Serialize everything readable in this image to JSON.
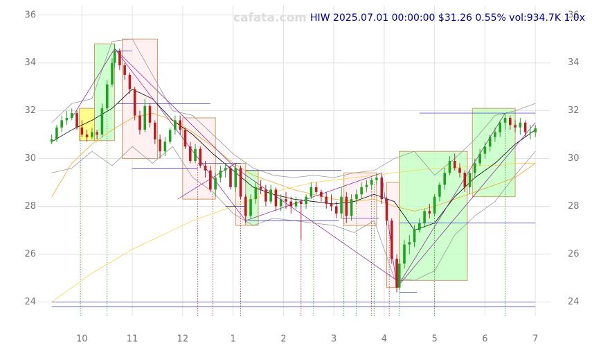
{
  "chart_data": {
    "type": "candlestick",
    "title": "HIW 2025.07.01 00:00:00 $31.26 0.55% vol:934.7K 1.0x",
    "watermark": "cafata.com",
    "xlim": [
      9.13,
      19.3
    ],
    "ylim": [
      23.4,
      36.4
    ],
    "xticks": [
      10,
      11,
      12,
      {
        "value": 13,
        "label": "1"
      },
      {
        "value": 14,
        "label": "2"
      },
      {
        "value": 15,
        "label": "3"
      },
      {
        "value": 16,
        "label": "4"
      },
      {
        "value": 17,
        "label": "5"
      },
      {
        "value": 18,
        "label": "6"
      },
      {
        "value": 19,
        "label": "7"
      }
    ],
    "yticks": [
      24,
      26,
      28,
      30,
      32,
      34,
      36
    ],
    "grid": true,
    "up_color": "#22a022",
    "down_color": "#b52025",
    "candles": [
      [
        9.4,
        30.7,
        31.0,
        30.6,
        30.8
      ],
      [
        9.5,
        30.8,
        31.4,
        30.7,
        31.3
      ],
      [
        9.6,
        31.3,
        31.8,
        31.1,
        31.6
      ],
      [
        9.7,
        31.6,
        32.0,
        31.4,
        31.7
      ],
      [
        9.8,
        31.7,
        32.1,
        31.6,
        31.9
      ],
      [
        9.9,
        31.9,
        32.0,
        31.2,
        31.3
      ],
      [
        10.0,
        31.3,
        31.6,
        30.9,
        31.0
      ],
      [
        10.1,
        31.0,
        31.2,
        30.7,
        30.9
      ],
      [
        10.2,
        30.9,
        31.3,
        30.8,
        31.1
      ],
      [
        10.3,
        31.1,
        31.2,
        30.8,
        31.0
      ],
      [
        10.4,
        31.0,
        32.3,
        30.9,
        32.1
      ],
      [
        10.5,
        32.1,
        33.3,
        32.0,
        33.1
      ],
      [
        10.6,
        33.1,
        34.2,
        33.0,
        34.0
      ],
      [
        10.65,
        34.0,
        34.8,
        33.8,
        34.5
      ],
      [
        10.75,
        34.5,
        34.6,
        33.7,
        33.9
      ],
      [
        10.85,
        33.9,
        34.0,
        33.3,
        33.5
      ],
      [
        10.95,
        33.5,
        33.6,
        32.7,
        32.9
      ],
      [
        11.05,
        32.9,
        33.0,
        31.6,
        31.8
      ],
      [
        11.15,
        31.8,
        32.0,
        31.0,
        31.2
      ],
      [
        11.25,
        31.2,
        32.5,
        31.1,
        32.2
      ],
      [
        11.35,
        32.2,
        32.3,
        31.3,
        31.5
      ],
      [
        11.45,
        31.5,
        31.6,
        30.6,
        30.8
      ],
      [
        11.55,
        30.8,
        31.0,
        30.0,
        30.3
      ],
      [
        11.65,
        30.3,
        30.9,
        30.1,
        30.7
      ],
      [
        11.75,
        30.7,
        31.3,
        30.6,
        31.2
      ],
      [
        11.85,
        31.2,
        31.8,
        31.0,
        31.6
      ],
      [
        11.95,
        31.6,
        31.8,
        31.0,
        31.2
      ],
      [
        12.05,
        31.2,
        31.3,
        30.4,
        30.5
      ],
      [
        12.15,
        30.5,
        30.7,
        29.8,
        29.9
      ],
      [
        12.25,
        29.9,
        30.6,
        29.8,
        30.4
      ],
      [
        12.35,
        30.4,
        30.5,
        29.6,
        29.7
      ],
      [
        12.45,
        29.7,
        29.9,
        29.2,
        29.5
      ],
      [
        12.55,
        29.5,
        29.7,
        28.6,
        28.7
      ],
      [
        12.65,
        28.7,
        29.4,
        28.4,
        29.2
      ],
      [
        12.75,
        29.2,
        29.7,
        29.0,
        29.5
      ],
      [
        12.85,
        29.5,
        29.8,
        29.2,
        29.6
      ],
      [
        12.95,
        29.6,
        29.7,
        28.7,
        28.8
      ],
      [
        13.05,
        28.8,
        29.8,
        28.6,
        29.6
      ],
      [
        13.15,
        29.6,
        29.7,
        28.3,
        28.4
      ],
      [
        13.25,
        28.4,
        28.5,
        27.3,
        27.6
      ],
      [
        13.35,
        27.6,
        28.5,
        27.5,
        28.3
      ],
      [
        13.45,
        28.3,
        29.0,
        28.1,
        28.8
      ],
      [
        13.55,
        28.8,
        29.1,
        28.5,
        28.7
      ],
      [
        13.65,
        28.7,
        28.9,
        28.0,
        28.2
      ],
      [
        13.75,
        28.2,
        28.9,
        28.1,
        28.7
      ],
      [
        13.85,
        28.7,
        28.8,
        27.8,
        28.0
      ],
      [
        13.95,
        28.0,
        28.5,
        27.8,
        28.3
      ],
      [
        14.05,
        28.3,
        28.6,
        27.9,
        28.2
      ],
      [
        14.15,
        28.2,
        28.4,
        27.7,
        28.0
      ],
      [
        14.25,
        28.0,
        28.4,
        27.9,
        28.2
      ],
      [
        14.35,
        28.2,
        28.3,
        26.6,
        28.1
      ],
      [
        14.45,
        28.1,
        28.5,
        27.9,
        28.4
      ],
      [
        14.55,
        28.4,
        29.0,
        28.3,
        28.8
      ],
      [
        14.65,
        28.8,
        29.0,
        28.5,
        28.6
      ],
      [
        14.75,
        28.6,
        28.7,
        28.2,
        28.4
      ],
      [
        14.85,
        28.4,
        28.6,
        27.9,
        28.1
      ],
      [
        14.95,
        28.1,
        28.5,
        27.8,
        28.0
      ],
      [
        15.05,
        28.0,
        28.2,
        27.5,
        27.7
      ],
      [
        15.15,
        27.7,
        28.8,
        27.5,
        28.4
      ],
      [
        15.25,
        28.4,
        28.6,
        27.3,
        27.6
      ],
      [
        15.35,
        27.6,
        28.5,
        27.4,
        28.3
      ],
      [
        15.45,
        28.3,
        28.7,
        28.1,
        28.5
      ],
      [
        15.55,
        28.5,
        29.0,
        28.3,
        28.8
      ],
      [
        15.65,
        28.8,
        29.1,
        28.6,
        28.9
      ],
      [
        15.75,
        28.9,
        29.2,
        28.7,
        29.1
      ],
      [
        15.85,
        29.1,
        29.4,
        28.9,
        29.2
      ],
      [
        15.95,
        29.2,
        29.3,
        28.1,
        28.3
      ],
      [
        16.05,
        28.3,
        28.4,
        27.2,
        27.4
      ],
      [
        16.15,
        27.4,
        27.5,
        25.6,
        25.8
      ],
      [
        16.25,
        25.8,
        26.0,
        24.4,
        24.6
      ],
      [
        16.3,
        24.6,
        25.8,
        24.5,
        25.6
      ],
      [
        16.4,
        25.6,
        26.6,
        25.4,
        26.4
      ],
      [
        16.5,
        26.4,
        26.8,
        26.0,
        26.5
      ],
      [
        16.6,
        26.5,
        27.2,
        26.3,
        27.0
      ],
      [
        16.7,
        27.0,
        27.5,
        26.9,
        27.3
      ],
      [
        16.8,
        27.3,
        27.9,
        27.1,
        27.8
      ],
      [
        16.9,
        27.8,
        28.1,
        27.5,
        27.7
      ],
      [
        17.0,
        27.7,
        28.5,
        27.6,
        28.4
      ],
      [
        17.1,
        28.4,
        29.0,
        28.2,
        28.9
      ],
      [
        17.2,
        28.9,
        29.6,
        28.7,
        29.4
      ],
      [
        17.3,
        29.4,
        30.1,
        29.3,
        29.9
      ],
      [
        17.4,
        29.9,
        30.2,
        29.5,
        29.6
      ],
      [
        17.5,
        29.6,
        29.8,
        29.2,
        29.4
      ],
      [
        17.6,
        29.4,
        29.5,
        28.6,
        28.8
      ],
      [
        17.7,
        28.8,
        29.5,
        28.5,
        29.4
      ],
      [
        17.8,
        29.4,
        30.0,
        29.2,
        29.8
      ],
      [
        17.9,
        29.8,
        30.4,
        29.7,
        30.2
      ],
      [
        18.0,
        30.2,
        30.7,
        30.0,
        30.5
      ],
      [
        18.1,
        30.5,
        31.0,
        30.3,
        30.9
      ],
      [
        18.2,
        30.9,
        31.3,
        30.7,
        31.1
      ],
      [
        18.3,
        31.1,
        31.6,
        30.9,
        31.5
      ],
      [
        18.4,
        31.5,
        31.9,
        31.2,
        31.7
      ],
      [
        18.5,
        31.7,
        31.8,
        31.2,
        31.4
      ],
      [
        18.6,
        31.4,
        31.6,
        31.1,
        31.3
      ],
      [
        18.7,
        31.3,
        31.7,
        31.0,
        31.5
      ],
      [
        18.8,
        31.5,
        31.6,
        30.9,
        31.1
      ],
      [
        18.9,
        31.1,
        31.4,
        30.8,
        31.1
      ],
      [
        19.0,
        31.1,
        31.4,
        30.9,
        31.26
      ]
    ],
    "line_x": [
      9.4,
      9.8,
      10.2,
      10.6,
      11.0,
      11.4,
      11.8,
      12.2,
      12.6,
      13.0,
      13.4,
      13.8,
      14.2,
      14.6,
      15.0,
      15.4,
      15.8,
      16.2,
      16.6,
      17.0,
      17.4,
      17.8,
      18.2,
      18.6,
      19.0
    ],
    "lines": [
      {
        "color": "#ffd24a",
        "values": [
          24.0,
          24.6,
          25.2,
          25.7,
          26.2,
          26.6,
          27.0,
          27.4,
          27.7,
          28.0,
          28.3,
          28.6,
          28.8,
          29.0,
          29.1,
          29.2,
          29.3,
          29.4,
          29.5,
          29.6,
          29.6,
          29.7,
          29.7,
          29.8,
          29.8
        ]
      },
      {
        "color": "#f5a623",
        "values": [
          28.4,
          29.8,
          30.6,
          31.2,
          31.7,
          31.9,
          31.6,
          31.1,
          30.5,
          29.8,
          29.3,
          29.0,
          28.7,
          28.5,
          28.3,
          28.2,
          28.3,
          28.0,
          27.8,
          28.0,
          28.3,
          28.6,
          28.9,
          29.2,
          29.8
        ]
      },
      {
        "color": "#000000",
        "values": [
          30.7,
          31.2,
          31.6,
          32.1,
          32.9,
          32.5,
          31.6,
          31.0,
          30.2,
          29.5,
          28.8,
          28.5,
          28.3,
          28.2,
          28.1,
          28.2,
          28.5,
          28.2,
          27.0,
          27.3,
          28.4,
          29.2,
          29.8,
          30.6,
          31.2
        ]
      },
      {
        "color": "#999999",
        "values": [
          31.5,
          32.3,
          32.5,
          34.9,
          35.0,
          33.5,
          32.0,
          31.8,
          31.0,
          30.2,
          29.6,
          29.3,
          29.2,
          29.3,
          29.2,
          29.4,
          29.5,
          30.0,
          30.3,
          29.3,
          30.0,
          30.8,
          31.8,
          32.0,
          32.3
        ]
      },
      {
        "color": "#999999",
        "values": [
          29.4,
          29.6,
          30.3,
          29.7,
          30.5,
          29.8,
          30.5,
          29.2,
          28.6,
          27.7,
          27.2,
          27.5,
          27.4,
          27.3,
          27.2,
          26.9,
          27.4,
          25.0,
          24.9,
          25.3,
          26.8,
          27.6,
          28.2,
          29.3,
          30.3
        ]
      }
    ],
    "zones": [
      {
        "x": [
          9.95,
          10.25
        ],
        "y": [
          30.75,
          32.1
        ],
        "fill": "#ffff66"
      },
      {
        "x": [
          10.25,
          10.65
        ],
        "y": [
          30.75,
          34.8
        ],
        "fill": "#bfffbf"
      },
      {
        "x": [
          10.8,
          11.5
        ],
        "y": [
          30.0,
          35.0
        ],
        "fill": "#ffecec"
      },
      {
        "x": [
          12.0,
          12.65
        ],
        "y": [
          28.3,
          31.7
        ],
        "fill": "#ffecec"
      },
      {
        "x": [
          13.05,
          13.25
        ],
        "y": [
          27.2,
          29.8
        ],
        "fill": "#ffecec"
      },
      {
        "x": [
          13.25,
          13.5
        ],
        "y": [
          27.2,
          29.5
        ],
        "fill": "#bfffbf"
      },
      {
        "x": [
          15.2,
          15.85
        ],
        "y": [
          27.2,
          29.4
        ],
        "fill": "#ffecec"
      },
      {
        "x": [
          16.05,
          16.3
        ],
        "y": [
          24.6,
          29.0
        ],
        "fill": "#ffecec"
      },
      {
        "x": [
          16.3,
          17.65
        ],
        "y": [
          24.9,
          30.3
        ],
        "fill": "#bfffbf"
      },
      {
        "x": [
          17.75,
          18.6
        ],
        "y": [
          28.4,
          32.1
        ],
        "fill": "#bfffbf"
      }
    ],
    "trend_lines": [
      [
        9.8,
        31.7,
        10.65,
        34.6
      ],
      [
        10.65,
        34.6,
        13.05,
        29.6
      ],
      [
        10.65,
        34.6,
        13.25,
        27.4
      ],
      [
        11.9,
        28.3,
        13.05,
        29.8
      ],
      [
        13.25,
        27.4,
        15.95,
        29.4
      ],
      [
        15.95,
        29.4,
        16.25,
        24.6
      ],
      [
        13.05,
        29.6,
        16.25,
        24.9
      ],
      [
        16.25,
        24.6,
        18.4,
        31.9
      ],
      [
        16.25,
        24.6,
        19.0,
        31.5
      ]
    ],
    "h_lines": [
      [
        10.65,
        11.0,
        34.5
      ],
      [
        10.7,
        12.55,
        32.3
      ],
      [
        11.0,
        12.3,
        29.6
      ],
      [
        12.3,
        13.15,
        29.8
      ],
      [
        12.85,
        13.25,
        28.0
      ],
      [
        13.25,
        15.15,
        29.5
      ],
      [
        13.3,
        15.1,
        27.4
      ],
      [
        15.15,
        15.9,
        27.5
      ],
      [
        16.3,
        16.65,
        24.4
      ],
      [
        16.3,
        19.0,
        27.3
      ],
      [
        16.7,
        19.0,
        31.9
      ],
      [
        9.4,
        19.0,
        24.0
      ],
      [
        9.4,
        19.0,
        23.8
      ]
    ],
    "buy_signals": [
      [
        9.97,
        31.0
      ],
      [
        10.5,
        32.2
      ],
      [
        14.6,
        28.6
      ],
      [
        15.2,
        27.6
      ],
      [
        15.45,
        28.4
      ],
      [
        15.8,
        29.0
      ],
      [
        16.3,
        24.5
      ],
      [
        17.0,
        27.6
      ],
      [
        18.4,
        31.2
      ]
    ],
    "sell_signals": [
      [
        12.3,
        29.8
      ],
      [
        12.6,
        28.6
      ],
      [
        13.15,
        28.4
      ],
      [
        14.35,
        26.6
      ],
      [
        15.75,
        28.8
      ],
      [
        16.1,
        27.2
      ]
    ]
  }
}
